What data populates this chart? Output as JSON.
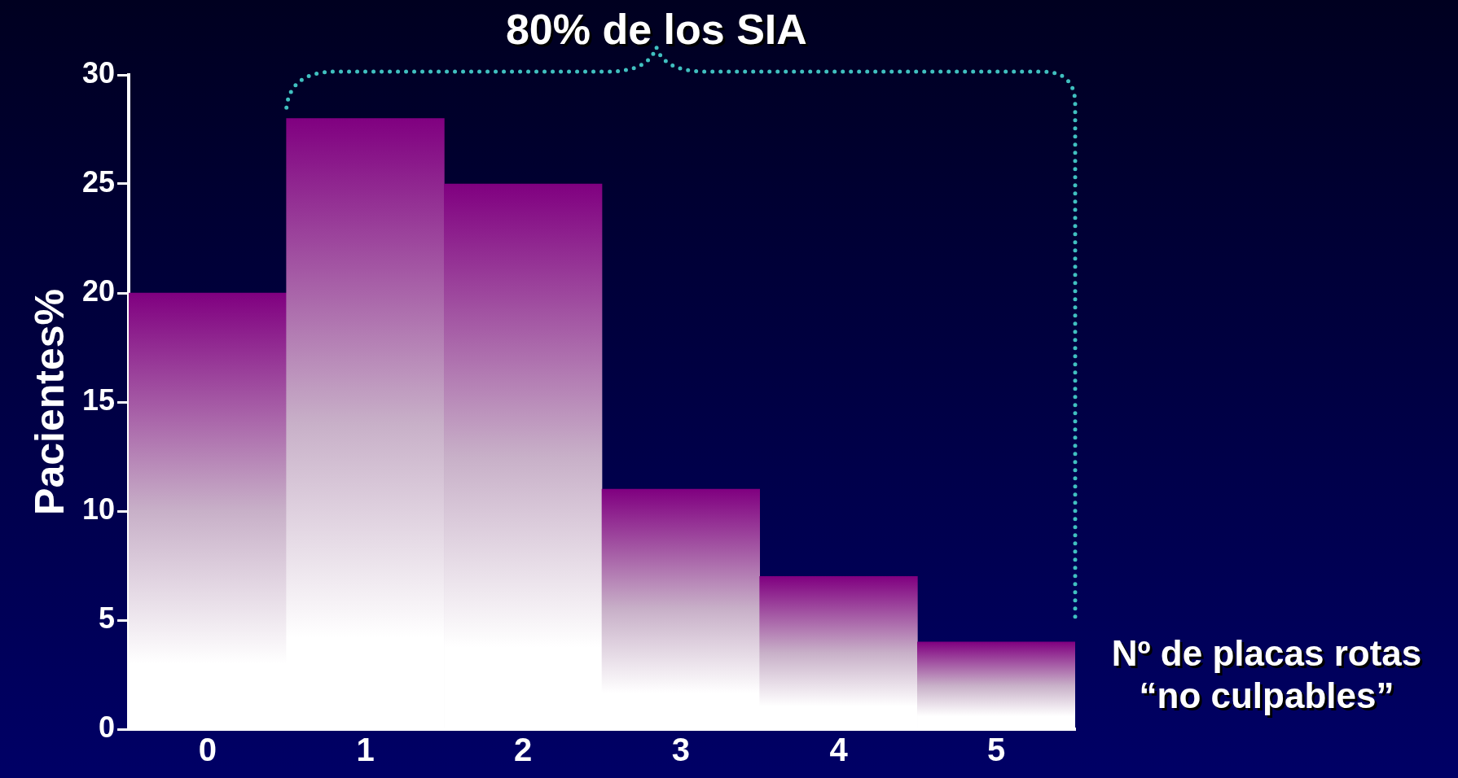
{
  "chart_data": {
    "type": "bar",
    "ylabel": "Pacientes%",
    "xlabel": "Nº de placas rotas\n“no culpables”",
    "categories": [
      "0",
      "1",
      "2",
      "3",
      "4",
      "5"
    ],
    "values": [
      20,
      28,
      25,
      11,
      7,
      4
    ],
    "color": "#800080",
    "ylim": [
      0,
      30
    ],
    "yticks": [
      0,
      5,
      10,
      15,
      20,
      25,
      30
    ],
    "grid": false,
    "legend": false,
    "annotations": [
      "80% de los SIA"
    ]
  }
}
